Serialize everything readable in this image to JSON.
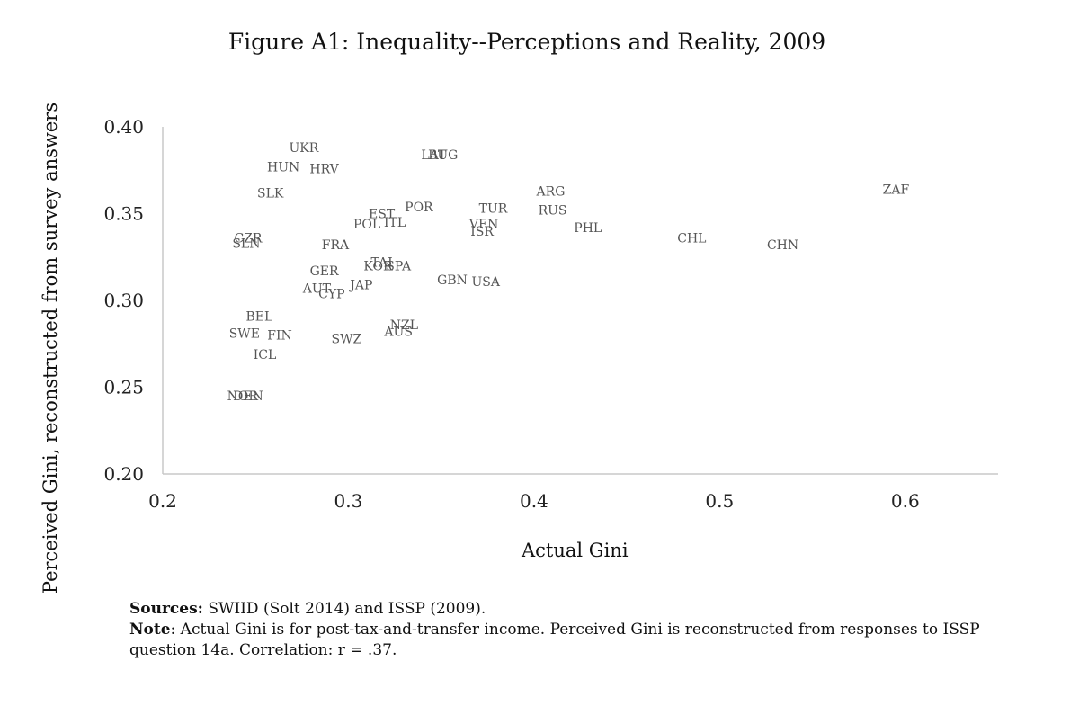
{
  "chart_data": {
    "type": "scatter",
    "title": "Figure A1: Inequality--Perceptions and Reality, 2009",
    "xlabel": "Actual Gini",
    "ylabel": "Perceived Gini, reconstructed from survey answers",
    "xlim": [
      0.2,
      0.65
    ],
    "ylim": [
      0.2,
      0.4
    ],
    "xticks": [
      "0.2",
      "0.3",
      "0.4",
      "0.5",
      "0.6"
    ],
    "yticks": [
      "0.20",
      "0.25",
      "0.30",
      "0.35",
      "0.40"
    ],
    "grid": false,
    "points": [
      {
        "label": "UKR",
        "x": 0.276,
        "y": 0.388
      },
      {
        "label": "HUN",
        "x": 0.265,
        "y": 0.377
      },
      {
        "label": "HRV",
        "x": 0.287,
        "y": 0.376
      },
      {
        "label": "LAT",
        "x": 0.346,
        "y": 0.384
      },
      {
        "label": "BUG",
        "x": 0.351,
        "y": 0.384
      },
      {
        "label": "SLK",
        "x": 0.258,
        "y": 0.362
      },
      {
        "label": "ZAF",
        "x": 0.595,
        "y": 0.364
      },
      {
        "label": "ARG",
        "x": 0.409,
        "y": 0.363
      },
      {
        "label": "RUS",
        "x": 0.41,
        "y": 0.352
      },
      {
        "label": "TUR",
        "x": 0.378,
        "y": 0.353
      },
      {
        "label": "POR",
        "x": 0.338,
        "y": 0.354
      },
      {
        "label": "EST",
        "x": 0.318,
        "y": 0.35
      },
      {
        "label": "ITL",
        "x": 0.325,
        "y": 0.345
      },
      {
        "label": "POL",
        "x": 0.31,
        "y": 0.344
      },
      {
        "label": "VEN",
        "x": 0.373,
        "y": 0.344
      },
      {
        "label": "ISR",
        "x": 0.372,
        "y": 0.34
      },
      {
        "label": "PHL",
        "x": 0.429,
        "y": 0.342
      },
      {
        "label": "CHL",
        "x": 0.485,
        "y": 0.336
      },
      {
        "label": "CHN",
        "x": 0.534,
        "y": 0.332
      },
      {
        "label": "CZR",
        "x": 0.246,
        "y": 0.336
      },
      {
        "label": "SLN",
        "x": 0.245,
        "y": 0.333
      },
      {
        "label": "FRA",
        "x": 0.293,
        "y": 0.332
      },
      {
        "label": "TAI",
        "x": 0.318,
        "y": 0.322
      },
      {
        "label": "KOR",
        "x": 0.316,
        "y": 0.32
      },
      {
        "label": "SPA",
        "x": 0.327,
        "y": 0.32
      },
      {
        "label": "GER",
        "x": 0.287,
        "y": 0.317
      },
      {
        "label": "GBN",
        "x": 0.356,
        "y": 0.312
      },
      {
        "label": "USA",
        "x": 0.374,
        "y": 0.311
      },
      {
        "label": "JAP",
        "x": 0.307,
        "y": 0.309
      },
      {
        "label": "AUT",
        "x": 0.283,
        "y": 0.307
      },
      {
        "label": "CYP",
        "x": 0.291,
        "y": 0.304
      },
      {
        "label": "BEL",
        "x": 0.252,
        "y": 0.291
      },
      {
        "label": "NZL",
        "x": 0.33,
        "y": 0.286
      },
      {
        "label": "AUS",
        "x": 0.327,
        "y": 0.282
      },
      {
        "label": "SWE",
        "x": 0.244,
        "y": 0.281
      },
      {
        "label": "FIN",
        "x": 0.263,
        "y": 0.28
      },
      {
        "label": "SWZ",
        "x": 0.299,
        "y": 0.278
      },
      {
        "label": "ICL",
        "x": 0.255,
        "y": 0.269
      },
      {
        "label": "NOR",
        "x": 0.243,
        "y": 0.245
      },
      {
        "label": "DEN",
        "x": 0.246,
        "y": 0.245
      }
    ]
  },
  "notes": {
    "sources_label": "Sources:",
    "sources_text": " SWIID (Solt 2014) and ISSP (2009).",
    "note_label": "Note",
    "note_text": ": Actual Gini is for post-tax-and-transfer income. Perceived Gini is reconstructed from responses to ISSP question 14a. Correlation: r = .37."
  }
}
